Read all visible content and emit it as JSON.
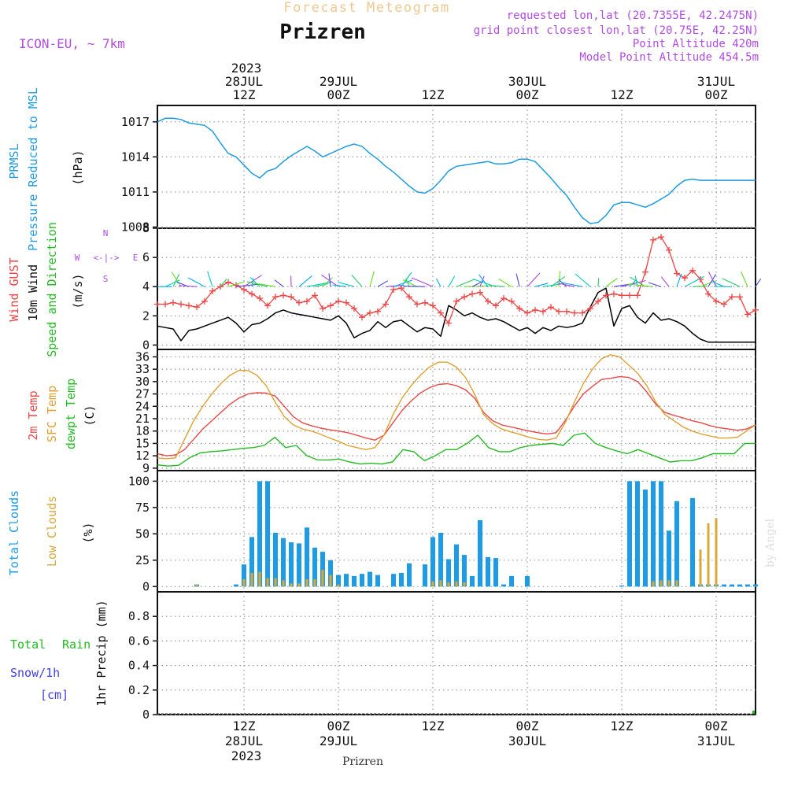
{
  "header": {
    "title_top": "Forecast Meteogram",
    "location": "Prizren",
    "model": "ICON-EU, ~ 7km",
    "requested": "requested lon,lat (20.7355E, 42.2475N)",
    "grid_point": "grid point closest lon,lat (20.75E, 42.25N)",
    "point_alt": "Point Altitude 420m",
    "model_alt": "Model Point Altitude 454.5m",
    "watermark": "by Angel",
    "footer_location": "Prizren"
  },
  "time_axis": {
    "top_year": "2023",
    "bottom_year": "2023",
    "ticks": [
      {
        "h": 12,
        "hour": "12Z",
        "date": "28JUL"
      },
      {
        "h": 24,
        "hour": "00Z",
        "date": "29JUL"
      },
      {
        "h": 36,
        "hour": "12Z",
        "date": ""
      },
      {
        "h": 48,
        "hour": "00Z",
        "date": "30JUL"
      },
      {
        "h": 60,
        "hour": "12Z",
        "date": ""
      },
      {
        "h": 72,
        "hour": "00Z",
        "date": "31JUL"
      }
    ],
    "h_start": 1,
    "h_end": 77
  },
  "panels": {
    "pressure": {
      "label1": "PRMSL",
      "label2": "Pressure Reduced to MSL",
      "unit": "(hPa)"
    },
    "wind": {
      "label_gust": "Wind GUST",
      "label_wind": "10m Wind",
      "label_dir": "Speed and Direction",
      "unit": "(m/s)",
      "compass_n": "N",
      "compass_s": "S",
      "compass_w": "W",
      "compass_e": "E"
    },
    "temp": {
      "label_t2m": "2m Temp",
      "label_sfc": "SFC Temp",
      "label_dew": "dewpt Temp",
      "unit": "(C)"
    },
    "clouds": {
      "label_total": "Total Clouds",
      "label_low": "Low Clouds",
      "unit": "(%)"
    },
    "precip": {
      "label_total": "Total",
      "label_rain": "Rain",
      "label_snow": "Snow/1h",
      "label_cm": "[cm]",
      "ylabel": "1hr Precip (mm)"
    }
  },
  "colors": {
    "pressure": "#1e9be0",
    "gust": "#ee4444",
    "wind": "#000000",
    "t2m": "#e84848",
    "sfc": "#e0a030",
    "dew": "#22bb22",
    "total_cloud": "#1c9be6",
    "low_cloud": "#d8a838",
    "title_orange": "#f0c890",
    "purple": "#b04ce0",
    "rain_green": "#22bb22",
    "snow_blue": "#4040e0"
  },
  "chart_data": [
    {
      "type": "line",
      "name": "pressure",
      "ylabel": "(hPa)",
      "ylim": [
        1007.9,
        1018.4
      ],
      "yticks": [
        "1017",
        "1014",
        "1011",
        "1008"
      ],
      "series": [
        {
          "name": "PRMSL",
          "x": [
            1,
            2,
            3,
            4,
            5,
            6,
            7,
            8,
            9,
            10,
            11,
            12,
            13,
            14,
            15,
            16,
            17,
            18,
            19,
            20,
            21,
            22,
            23,
            24,
            25,
            26,
            27,
            28,
            29,
            30,
            31,
            32,
            33,
            34,
            35,
            36,
            37,
            38,
            39,
            40,
            41,
            42,
            43,
            44,
            45,
            46,
            47,
            48,
            49,
            50,
            51,
            52,
            53,
            54,
            55,
            56,
            57,
            58,
            59,
            60,
            61,
            62,
            63,
            64,
            65,
            66,
            67,
            68,
            69,
            70,
            71,
            72,
            73,
            74,
            75,
            76,
            77
          ],
          "values": [
            1017.0,
            1017.3,
            1017.3,
            1017.2,
            1016.9,
            1016.8,
            1016.7,
            1016.2,
            1015.2,
            1014.3,
            1014.0,
            1013.3,
            1012.6,
            1012.2,
            1012.8,
            1013.0,
            1013.6,
            1014.1,
            1014.5,
            1014.9,
            1014.5,
            1014.0,
            1014.3,
            1014.6,
            1014.9,
            1015.1,
            1014.9,
            1014.3,
            1013.8,
            1013.2,
            1012.7,
            1012.1,
            1011.5,
            1011.0,
            1010.9,
            1011.3,
            1012.0,
            1012.8,
            1013.2,
            1013.3,
            1013.4,
            1013.5,
            1013.6,
            1013.4,
            1013.4,
            1013.5,
            1013.8,
            1013.8,
            1013.6,
            1012.9,
            1012.2,
            1011.4,
            1010.7,
            1009.7,
            1008.8,
            1008.3,
            1008.4,
            1009.0,
            1009.9,
            1010.1,
            1010.1,
            1009.9,
            1009.7,
            1010.0,
            1010.4,
            1010.8,
            1011.5,
            1012.0,
            1012.1,
            1012.0,
            1012.0,
            1012.0,
            1012.0,
            1012.0,
            1012.0,
            1012.0,
            1012.0
          ]
        }
      ],
      "x_end": 77
    },
    {
      "type": "line",
      "name": "wind",
      "ylabel": "(m/s)",
      "ylim": [
        -0.3,
        8.0
      ],
      "yticks": [
        "8",
        "6",
        "4",
        "2",
        "0"
      ],
      "series": [
        {
          "name": "Wind GUST",
          "values": [
            2.8,
            2.8,
            2.9,
            2.8,
            2.7,
            2.6,
            3.0,
            3.7,
            4.0,
            4.3,
            4.1,
            3.8,
            3.5,
            3.2,
            2.7,
            3.3,
            3.4,
            3.3,
            2.9,
            3.0,
            3.4,
            2.5,
            2.7,
            3.0,
            2.9,
            2.5,
            1.9,
            2.2,
            2.3,
            2.8,
            3.8,
            3.9,
            3.3,
            2.8,
            2.9,
            2.7,
            2.2,
            1.5,
            3.0,
            3.3,
            3.5,
            3.6,
            3.0,
            2.7,
            3.2,
            3.0,
            2.5,
            2.2,
            2.4,
            2.3,
            2.6,
            2.3,
            2.3,
            2.2,
            2.2,
            2.5,
            3.0,
            3.4,
            3.5,
            3.4,
            3.4,
            3.4,
            5.0,
            7.2,
            7.4,
            6.5,
            4.9,
            4.6,
            5.1,
            4.5,
            3.5,
            3.0,
            2.8,
            3.3,
            3.3,
            2.1,
            2.4
          ]
        },
        {
          "name": "10m Wind",
          "values": [
            1.3,
            1.2,
            1.1,
            0.3,
            1.0,
            1.1,
            1.3,
            1.5,
            1.7,
            1.9,
            1.5,
            0.9,
            1.4,
            1.5,
            1.8,
            2.2,
            2.4,
            2.2,
            2.1,
            2.0,
            1.9,
            1.8,
            1.7,
            2.0,
            1.5,
            0.5,
            0.8,
            1.0,
            1.6,
            1.2,
            1.6,
            1.7,
            1.3,
            0.9,
            1.2,
            1.1,
            0.6,
            2.7,
            2.4,
            2.0,
            2.2,
            1.9,
            1.7,
            1.8,
            1.6,
            1.3,
            1.0,
            1.2,
            0.8,
            1.2,
            1.0,
            1.3,
            1.2,
            1.3,
            1.5,
            2.6,
            3.6,
            3.9,
            1.3,
            2.5,
            2.7,
            1.9,
            1.5,
            2.2,
            1.7,
            1.8,
            1.6,
            1.3,
            0.8,
            0.4,
            0.2,
            0.2,
            0.2,
            0.2,
            0.2,
            0.2,
            0.2
          ]
        }
      ],
      "x_end": 77
    },
    {
      "type": "line",
      "name": "temperature",
      "ylabel": "(C)",
      "ylim": [
        8.4,
        37.8
      ],
      "yticks": [
        "36",
        "33",
        "30",
        "27",
        "24",
        "21",
        "18",
        "15",
        "12",
        "9"
      ],
      "series": [
        {
          "name": "2m Temp",
          "values": [
            12.5,
            12.0,
            12.2,
            13.5,
            16.0,
            18.5,
            20.5,
            22.5,
            24.5,
            26.0,
            27.0,
            27.3,
            27.2,
            26.5,
            24.0,
            21.5,
            20.0,
            19.3,
            18.7,
            18.3,
            18.0,
            17.6,
            17.0,
            16.3,
            15.8,
            17.0,
            20.0,
            23.0,
            25.3,
            27.2,
            28.5,
            29.3,
            29.5,
            29.0,
            28.0,
            26.0,
            22.5,
            20.5,
            19.5,
            19.0,
            18.5,
            18.0,
            17.6,
            17.3,
            17.6,
            20.5,
            24.0,
            27.0,
            28.8,
            30.5,
            30.8,
            31.2,
            31.0,
            30.0,
            27.5,
            24.5,
            22.5,
            21.8,
            21.2,
            20.5,
            20.0,
            19.3,
            18.8,
            18.5,
            18.2,
            18.5,
            19.5
          ]
        },
        {
          "name": "SFC Temp",
          "values": [
            11.5,
            11.3,
            11.5,
            16.0,
            20.5,
            24.0,
            27.0,
            29.5,
            31.5,
            32.7,
            32.7,
            31.5,
            29.0,
            25.0,
            21.5,
            19.5,
            18.5,
            18.0,
            17.2,
            16.3,
            15.5,
            14.5,
            14.0,
            13.5,
            14.0,
            17.0,
            22.0,
            26.0,
            29.0,
            31.5,
            33.5,
            34.7,
            34.7,
            33.5,
            31.0,
            27.0,
            22.0,
            19.8,
            18.5,
            17.8,
            17.2,
            16.5,
            16.0,
            15.8,
            16.3,
            20.0,
            25.0,
            29.5,
            33.0,
            35.5,
            36.5,
            36.0,
            34.0,
            32.0,
            29.0,
            25.0,
            22.0,
            20.5,
            19.0,
            18.0,
            17.3,
            16.8,
            16.3,
            16.3,
            16.5,
            18.0,
            19.5
          ]
        },
        {
          "name": "dewpt Temp",
          "values": [
            9.8,
            9.5,
            9.7,
            11.5,
            12.7,
            13.0,
            13.2,
            13.5,
            13.8,
            14.0,
            14.5,
            16.5,
            14.0,
            14.5,
            12.0,
            11.0,
            11.0,
            11.2,
            10.5,
            10.0,
            10.2,
            10.0,
            10.5,
            13.5,
            13.0,
            10.8,
            12.0,
            13.5,
            13.5,
            15.0,
            17.0,
            14.0,
            13.0,
            13.0,
            14.0,
            14.5,
            14.8,
            15.0,
            14.5,
            17.0,
            17.5,
            15.0,
            14.0,
            13.2,
            12.5,
            13.5,
            12.5,
            11.5,
            10.5,
            10.8,
            10.8,
            11.5,
            12.5,
            12.5,
            12.5,
            15.0,
            15.0
          ]
        }
      ],
      "x_end": 77
    },
    {
      "type": "bar",
      "name": "clouds",
      "ylabel": "(%)",
      "ylim": [
        -5,
        110
      ],
      "yticks": [
        "100",
        "75",
        "50",
        "25",
        "0"
      ],
      "hours": [
        6,
        11,
        12,
        13,
        14,
        15,
        16,
        17,
        18,
        19,
        20,
        21,
        22,
        23,
        24,
        25,
        26,
        27,
        28,
        29,
        31,
        32,
        33,
        35,
        36,
        37,
        38,
        39,
        40,
        41,
        42,
        43,
        44,
        45,
        46,
        48,
        60,
        61,
        62,
        63,
        64,
        65,
        66,
        67,
        69,
        70,
        71,
        72,
        73,
        74,
        75,
        76,
        77
      ],
      "series": [
        {
          "name": "Total Clouds",
          "values": [
            2,
            2,
            21,
            47,
            100,
            100,
            51,
            46,
            42,
            41,
            56,
            37,
            33,
            25,
            11,
            12,
            10,
            12,
            14,
            11,
            12,
            13,
            22,
            21,
            47,
            51,
            26,
            40,
            30,
            10,
            63,
            28,
            27,
            2,
            10,
            10,
            1,
            100,
            100,
            92,
            100,
            100,
            53,
            81,
            84,
            2,
            2,
            2,
            2,
            2,
            2,
            2,
            2
          ]
        },
        {
          "name": "Low Clouds",
          "values": [
            2,
            0,
            7,
            13,
            14,
            8,
            8,
            6,
            3,
            3,
            7,
            7,
            16,
            11,
            2,
            0,
            0,
            0,
            0,
            0,
            0,
            0,
            0,
            0,
            5,
            6,
            4,
            5,
            4,
            0,
            0,
            0,
            0,
            0,
            0,
            0,
            0,
            0,
            0,
            0,
            5,
            6,
            6,
            6,
            0,
            35,
            60,
            65,
            0,
            0,
            0,
            0,
            0
          ]
        }
      ],
      "x_end": 77
    },
    {
      "type": "line",
      "name": "precipitation",
      "ylabel": "1hr Precip (mm)",
      "ylim": [
        0,
        1.0
      ],
      "yticks": [
        "0.8",
        "0.6",
        "0.4",
        "0.2",
        "0"
      ],
      "series": [
        {
          "name": "Total Rain",
          "values": []
        },
        {
          "name": "Snow/1h",
          "values": []
        }
      ],
      "x_end": 77
    }
  ]
}
